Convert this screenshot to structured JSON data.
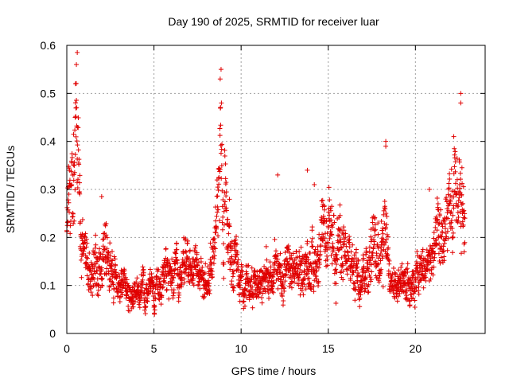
{
  "chart_data": {
    "type": "scatter",
    "title": "Day 190 of 2025, SRMTID for receiver luar",
    "xlabel": "GPS time / hours",
    "ylabel": "SRMTID / TECUs",
    "xlim": [
      0,
      24
    ],
    "ylim": [
      0,
      0.6
    ],
    "xticks": [
      0,
      5,
      10,
      15,
      20
    ],
    "xtick_labels": [
      "0",
      "5",
      "10",
      "15",
      "20"
    ],
    "yticks": [
      0,
      0.1,
      0.2,
      0.3,
      0.4,
      0.5,
      0.6
    ],
    "ytick_labels": [
      "0",
      "0.1",
      "0.2",
      "0.3",
      "0.4",
      "0.5",
      "0.6"
    ],
    "grid": true,
    "marker": "+",
    "color": "#e00000",
    "points_per_hour": 100,
    "x_end": 22.85,
    "envelope": [
      {
        "x": 0.0,
        "y": 0.2
      },
      {
        "x": 0.3,
        "y": 0.34
      },
      {
        "x": 0.5,
        "y": 0.4
      },
      {
        "x": 0.7,
        "y": 0.32
      },
      {
        "x": 1.0,
        "y": 0.14
      },
      {
        "x": 2.0,
        "y": 0.16
      },
      {
        "x": 2.2,
        "y": 0.19
      },
      {
        "x": 3.0,
        "y": 0.1
      },
      {
        "x": 4.0,
        "y": 0.08
      },
      {
        "x": 5.0,
        "y": 0.1
      },
      {
        "x": 6.0,
        "y": 0.12
      },
      {
        "x": 7.0,
        "y": 0.13
      },
      {
        "x": 8.0,
        "y": 0.11
      },
      {
        "x": 8.5,
        "y": 0.16
      },
      {
        "x": 8.85,
        "y": 0.4
      },
      {
        "x": 9.2,
        "y": 0.24
      },
      {
        "x": 9.6,
        "y": 0.17
      },
      {
        "x": 10.0,
        "y": 0.11
      },
      {
        "x": 11.0,
        "y": 0.11
      },
      {
        "x": 12.0,
        "y": 0.13
      },
      {
        "x": 13.0,
        "y": 0.12
      },
      {
        "x": 14.0,
        "y": 0.15
      },
      {
        "x": 15.0,
        "y": 0.19
      },
      {
        "x": 15.5,
        "y": 0.21
      },
      {
        "x": 16.0,
        "y": 0.14
      },
      {
        "x": 17.0,
        "y": 0.14
      },
      {
        "x": 18.0,
        "y": 0.2
      },
      {
        "x": 18.3,
        "y": 0.26
      },
      {
        "x": 18.6,
        "y": 0.1
      },
      {
        "x": 19.0,
        "y": 0.11
      },
      {
        "x": 20.0,
        "y": 0.12
      },
      {
        "x": 20.5,
        "y": 0.13
      },
      {
        "x": 21.0,
        "y": 0.16
      },
      {
        "x": 22.0,
        "y": 0.22
      },
      {
        "x": 22.4,
        "y": 0.28
      },
      {
        "x": 22.85,
        "y": 0.24
      }
    ],
    "peaks": [
      {
        "x": 0.6,
        "y": 0.585
      },
      {
        "x": 0.55,
        "y": 0.56
      },
      {
        "x": 0.5,
        "y": 0.52
      },
      {
        "x": 8.85,
        "y": 0.55
      },
      {
        "x": 8.8,
        "y": 0.53
      },
      {
        "x": 2.0,
        "y": 0.285
      },
      {
        "x": 12.1,
        "y": 0.33
      },
      {
        "x": 13.8,
        "y": 0.34
      },
      {
        "x": 14.2,
        "y": 0.31
      },
      {
        "x": 18.3,
        "y": 0.4
      },
      {
        "x": 18.3,
        "y": 0.39
      },
      {
        "x": 20.8,
        "y": 0.3
      },
      {
        "x": 22.2,
        "y": 0.41
      },
      {
        "x": 22.6,
        "y": 0.5
      },
      {
        "x": 22.6,
        "y": 0.48
      }
    ]
  }
}
